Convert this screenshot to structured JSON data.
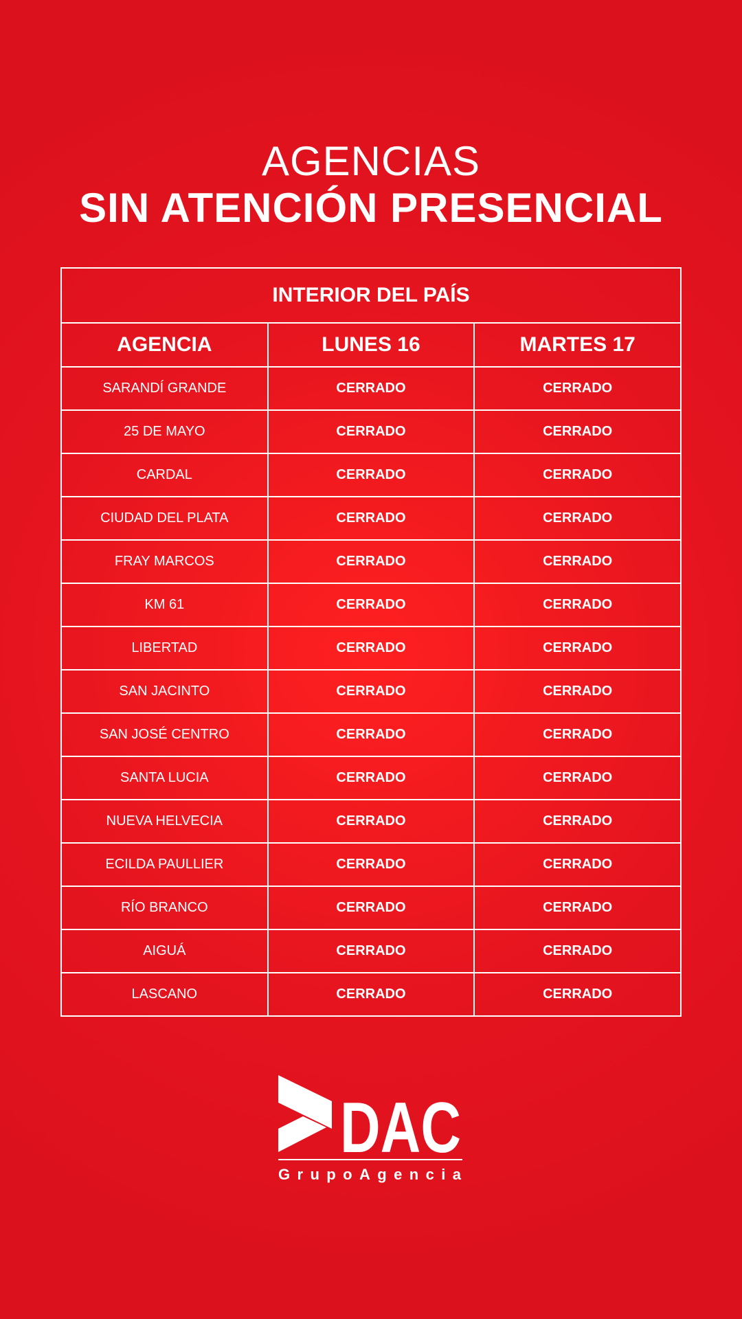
{
  "header": {
    "line1": "AGENCIAS",
    "line2": "SIN ATENCIÓN PRESENCIAL"
  },
  "table": {
    "region": "INTERIOR DEL PAÍS",
    "columns": [
      "AGENCIA",
      "LUNES 16",
      "MARTES 17"
    ],
    "rows": [
      {
        "agencia": "SARANDÍ GRANDE",
        "lunes": "CERRADO",
        "martes": "CERRADO"
      },
      {
        "agencia": "25 DE MAYO",
        "lunes": "CERRADO",
        "martes": "CERRADO"
      },
      {
        "agencia": "CARDAL",
        "lunes": "CERRADO",
        "martes": "CERRADO"
      },
      {
        "agencia": "CIUDAD DEL PLATA",
        "lunes": "CERRADO",
        "martes": "CERRADO"
      },
      {
        "agencia": "FRAY MARCOS",
        "lunes": "CERRADO",
        "martes": "CERRADO"
      },
      {
        "agencia": "KM 61",
        "lunes": "CERRADO",
        "martes": "CERRADO"
      },
      {
        "agencia": "LIBERTAD",
        "lunes": "CERRADO",
        "martes": "CERRADO"
      },
      {
        "agencia": "SAN JACINTO",
        "lunes": "CERRADO",
        "martes": "CERRADO"
      },
      {
        "agencia": "SAN JOSÉ CENTRO",
        "lunes": "CERRADO",
        "martes": "CERRADO"
      },
      {
        "agencia": "SANTA LUCIA",
        "lunes": "CERRADO",
        "martes": "CERRADO"
      },
      {
        "agencia": "NUEVA HELVECIA",
        "lunes": "CERRADO",
        "martes": "CERRADO"
      },
      {
        "agencia": "ECILDA PAULLIER",
        "lunes": "CERRADO",
        "martes": "CERRADO"
      },
      {
        "agencia": "RÍO BRANCO",
        "lunes": "CERRADO",
        "martes": "CERRADO"
      },
      {
        "agencia": "AIGUÁ",
        "lunes": "CERRADO",
        "martes": "CERRADO"
      },
      {
        "agencia": "LASCANO",
        "lunes": "CERRADO",
        "martes": "CERRADO"
      }
    ]
  },
  "logo": {
    "name": "DAC",
    "tagline": "GrupoAgencia"
  },
  "colors": {
    "background": "#dc111e",
    "foreground": "#ffffff"
  }
}
